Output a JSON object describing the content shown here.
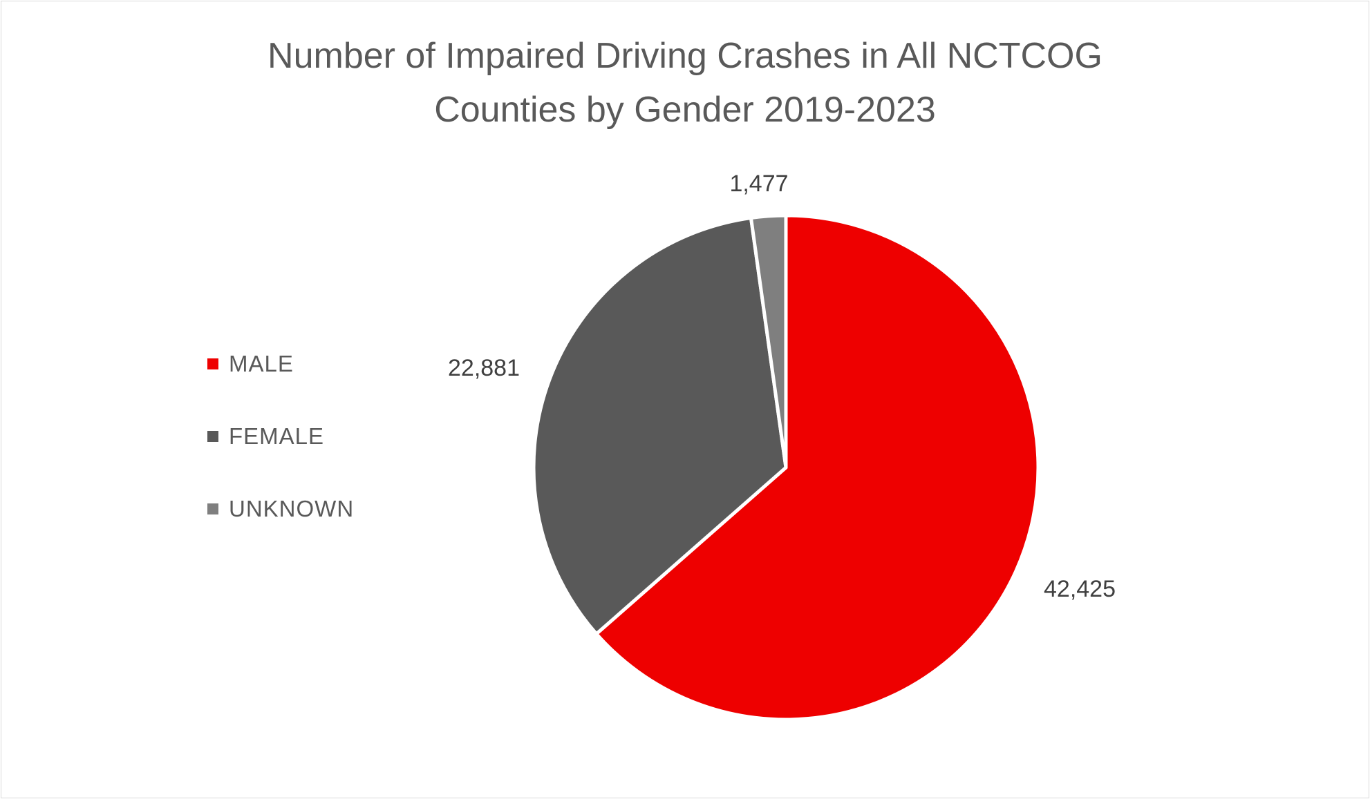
{
  "chart_data": {
    "type": "pie",
    "title": "Number of Impaired Driving Crashes in All NCTCOG Counties by Gender 2019-2023",
    "title_lines": [
      "Number of Impaired Driving Crashes in All NCTCOG",
      "Counties by Gender 2019-2023"
    ],
    "categories": [
      "MALE",
      "FEMALE",
      "UNKNOWN"
    ],
    "values": [
      42425,
      22881,
      1477
    ],
    "data_labels": [
      "42,425",
      "22,881",
      "1,477"
    ],
    "colors": [
      "#ee0000",
      "#595959",
      "#7f7f7f"
    ],
    "legend_placement": "left",
    "start_angle_deg": 0,
    "direction": "clockwise"
  }
}
